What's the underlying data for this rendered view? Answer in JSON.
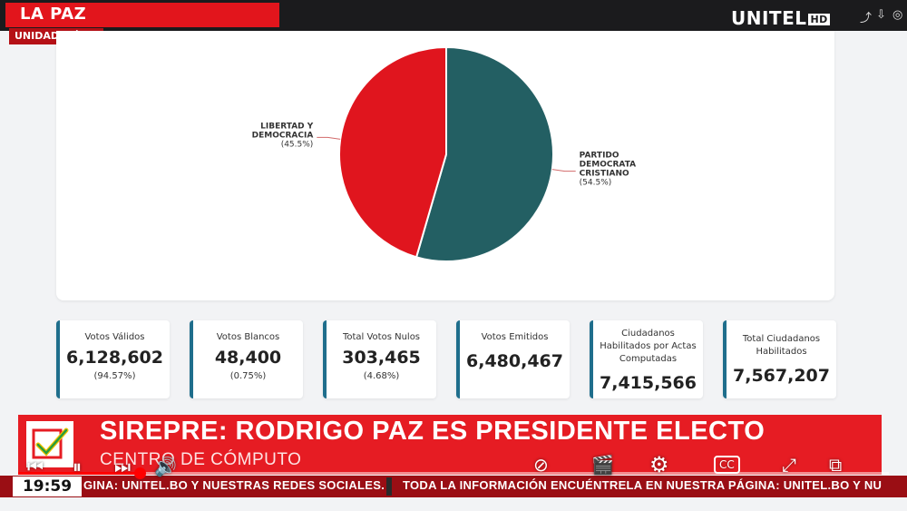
{
  "broadcast": {
    "location": "LA PAZ",
    "unit": "UNIDAD MÓVIL",
    "logo": "UNITEL",
    "logo_badge": "HD"
  },
  "chart_data": {
    "type": "pie",
    "labels": [
      "PARTIDO DEMOCRATA CRISTIANO",
      "LIBERTAD Y DEMOCRACIA"
    ],
    "values": [
      54.5,
      45.5
    ],
    "label_lines": [
      [
        "PARTIDO",
        "DEMOCRATA",
        "CRISTIANO",
        "(54.5%)"
      ],
      [
        "LIBERTAD Y",
        "DEMOCRACIA",
        "(45.5%)"
      ]
    ],
    "colors": [
      "#235f63",
      "#e0151e"
    ]
  },
  "stats": [
    {
      "label_lines": [
        "Votos Válidos"
      ],
      "value": "6,128,602",
      "pct": "(94.57%)"
    },
    {
      "label_lines": [
        "Votos Blancos"
      ],
      "value": "48,400",
      "pct": "(0.75%)"
    },
    {
      "label_lines": [
        "Total Votos Nulos"
      ],
      "value": "303,465",
      "pct": "(4.68%)"
    },
    {
      "label_lines": [
        "Votos Emitidos"
      ],
      "value": "6,480,467",
      "pct": ""
    },
    {
      "label_lines": [
        "Ciudadanos",
        "Habilitados por Actas",
        "Computadas"
      ],
      "value": "7,415,566",
      "pct": ""
    },
    {
      "label_lines": [
        "Total Ciudadanos",
        "Habilitados"
      ],
      "value": "7,567,207",
      "pct": ""
    }
  ],
  "lower_third": {
    "headline": "SIREPRE: RODRIGO PAZ ES PRESIDENTE ELECTO",
    "subline": "CENTRO DE CÓMPUTO",
    "time": "19:59",
    "ticker_left": "GINA: UNITEL.BO Y NUESTRAS REDES SOCIALES.",
    "ticker_right": "TODA LA INFORMACIÓN ENCUÉNTRELA EN NUESTRA PÁGINA: UNITEL.BO Y NU"
  },
  "player": {
    "progress": 0.14,
    "icons": [
      "prev-icon",
      "pause-icon",
      "next-icon",
      "sound-icon",
      "clip-icon",
      "settings-icon",
      "captions-icon",
      "fullscreen-icon",
      "pip-icon"
    ],
    "cc_label": "CC"
  }
}
